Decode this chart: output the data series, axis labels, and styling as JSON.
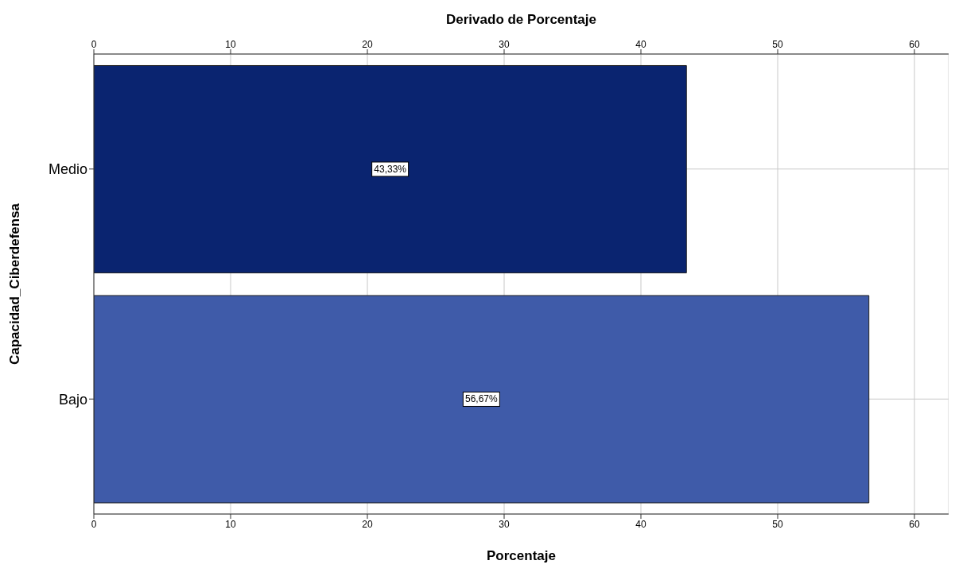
{
  "chart_data": {
    "type": "bar",
    "orientation": "horizontal",
    "xlabel": "Porcentaje",
    "x2label": "Derivado de Porcentaje",
    "ylabel": "Capacidad_Ciberdefensa",
    "categories": [
      "Medio",
      "Bajo"
    ],
    "values": [
      43.33,
      56.67
    ],
    "colors": [
      "#0a2470",
      "#3f5ba9"
    ],
    "value_labels": [
      "43,33%",
      "56,67%"
    ],
    "xlim": [
      0,
      62.5
    ],
    "xticks": [
      0,
      10,
      20,
      30,
      40,
      50,
      60
    ],
    "x2lim": [
      0,
      62.5
    ],
    "x2ticks": [
      0,
      10,
      20,
      30,
      40,
      50,
      60
    ],
    "grid": true
  }
}
